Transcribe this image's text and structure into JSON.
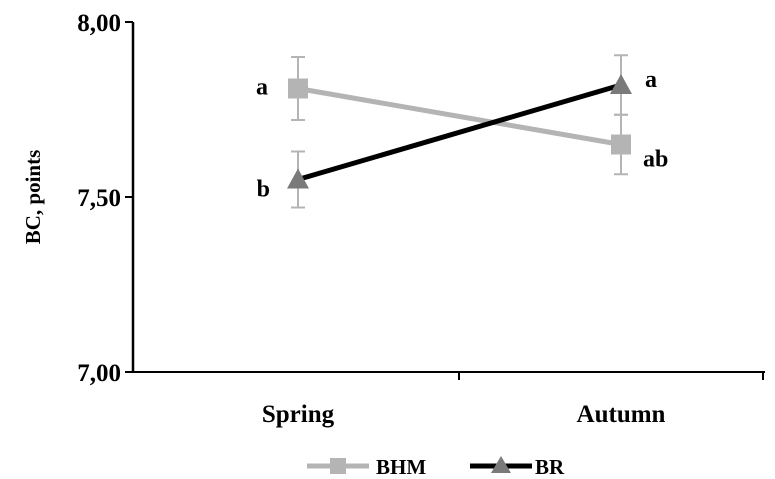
{
  "chart_data": {
    "type": "line",
    "categories": [
      "Spring",
      "Autumn"
    ],
    "ylabel": "BC, points",
    "xlabel": "",
    "title": "",
    "ylim": [
      7.0,
      8.0
    ],
    "yticks": [
      7.0,
      7.5,
      8.0
    ],
    "ytick_labels": [
      "7,00",
      "7,50",
      "8,00"
    ],
    "grid": false,
    "legend_position": "bottom",
    "series": [
      {
        "name": "BHM",
        "color": "#b4b4b4",
        "marker": "square",
        "values": [
          7.81,
          7.65
        ],
        "errors": [
          0.09,
          0.085
        ],
        "significance": [
          "a",
          "ab"
        ]
      },
      {
        "name": "BR",
        "color": "#000000",
        "marker_color": "#7a7a7a",
        "marker": "triangle",
        "values": [
          7.55,
          7.82
        ],
        "errors": [
          0.08,
          0.085
        ],
        "significance": [
          "b",
          "a"
        ]
      }
    ]
  }
}
